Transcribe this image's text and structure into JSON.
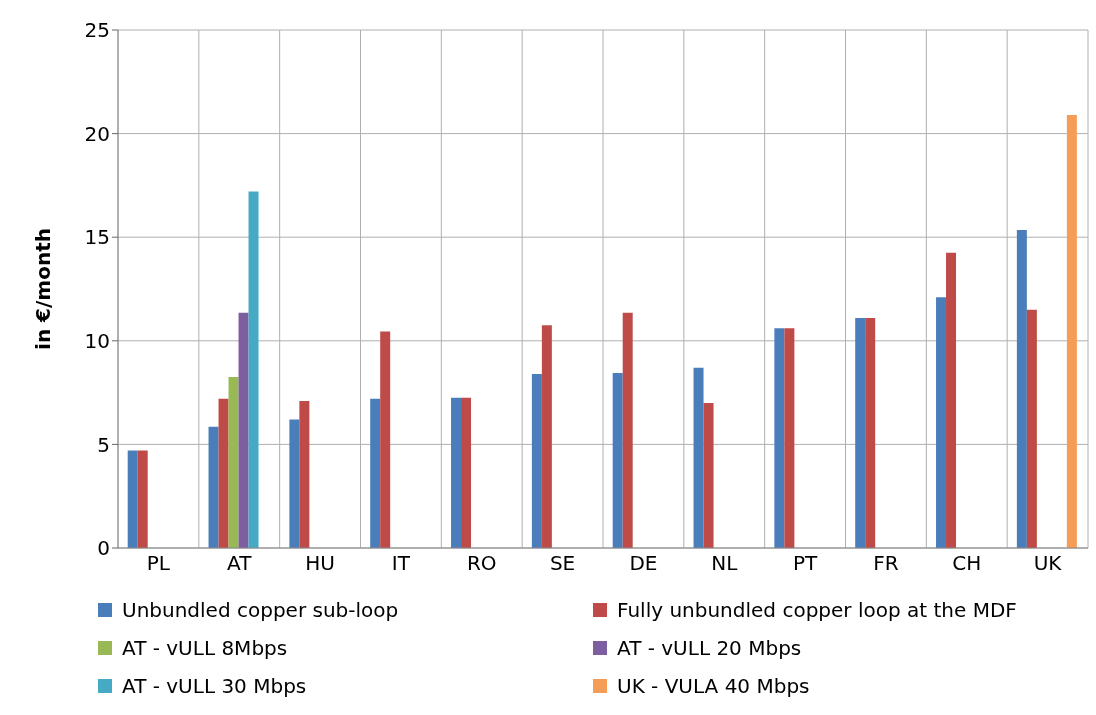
{
  "chart_data": {
    "type": "bar",
    "ylabel": "in €/month",
    "categories": [
      "PL",
      "AT",
      "HU",
      "IT",
      "RO",
      "SE",
      "DE",
      "NL",
      "PT",
      "FR",
      "CH",
      "UK"
    ],
    "series": [
      {
        "name": "Unbundled copper sub-loop",
        "color": "#4a7ebb",
        "values": [
          4.7,
          5.85,
          6.2,
          7.2,
          7.25,
          8.4,
          8.45,
          8.7,
          10.6,
          11.1,
          12.1,
          15.35
        ]
      },
      {
        "name": "Fully unbundled copper loop at the MDF",
        "color": "#be4b48",
        "values": [
          4.7,
          7.2,
          7.1,
          10.45,
          7.25,
          10.75,
          11.35,
          7.0,
          10.6,
          11.1,
          14.25,
          11.5
        ]
      },
      {
        "name": "AT - vULL 8Mbps",
        "color": "#98b954",
        "values": [
          null,
          8.25,
          null,
          null,
          null,
          null,
          null,
          null,
          null,
          null,
          null,
          null
        ]
      },
      {
        "name": "AT - vULL 20 Mbps",
        "color": "#7d5fa0",
        "values": [
          null,
          11.35,
          null,
          null,
          null,
          null,
          null,
          null,
          null,
          null,
          null,
          null
        ]
      },
      {
        "name": "AT - vULL 30 Mbps",
        "color": "#46aac5",
        "values": [
          null,
          17.2,
          null,
          null,
          null,
          null,
          null,
          null,
          null,
          null,
          null,
          null
        ]
      },
      {
        "name": "UK - VULA 40 Mbps",
        "color": "#f59d56",
        "values": [
          null,
          null,
          null,
          null,
          null,
          null,
          null,
          null,
          null,
          null,
          null,
          20.9
        ]
      }
    ],
    "ylim": [
      0,
      25
    ],
    "yticks": [
      0,
      5,
      10,
      15,
      20,
      25
    ],
    "grid": true,
    "legend": "bottom"
  }
}
